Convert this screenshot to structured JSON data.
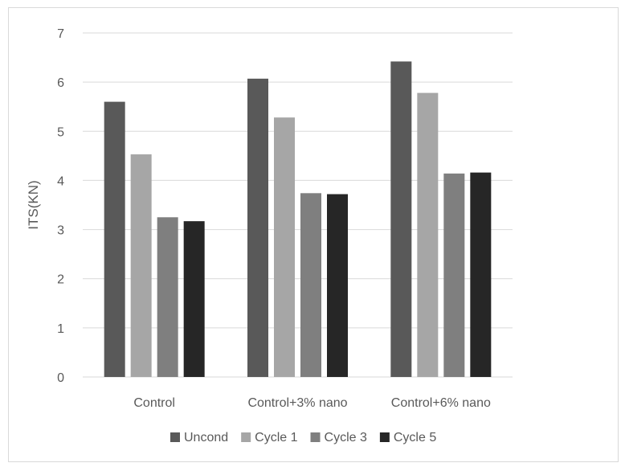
{
  "chart_data": {
    "type": "bar",
    "categories": [
      "Control",
      "Control+3% nano",
      "Control+6% nano"
    ],
    "series": [
      {
        "name": "Uncond",
        "values": [
          5.6,
          6.07,
          6.42
        ],
        "color": "#595959"
      },
      {
        "name": "Cycle 1",
        "values": [
          4.53,
          5.28,
          5.78
        ],
        "color": "#a6a6a6"
      },
      {
        "name": "Cycle 3",
        "values": [
          3.25,
          3.74,
          4.14
        ],
        "color": "#7f7f7f"
      },
      {
        "name": "Cycle 5",
        "values": [
          3.17,
          3.72,
          4.16
        ],
        "color": "#262626"
      }
    ],
    "ylabel": "ITS(KN)",
    "xlabel": "",
    "ylim": [
      0,
      7
    ],
    "yticks": [
      "0",
      "1",
      "2",
      "3",
      "4",
      "5",
      "6",
      "7"
    ],
    "grid": true,
    "legend_position": "bottom",
    "gridline_color": "#d9d9d9"
  }
}
